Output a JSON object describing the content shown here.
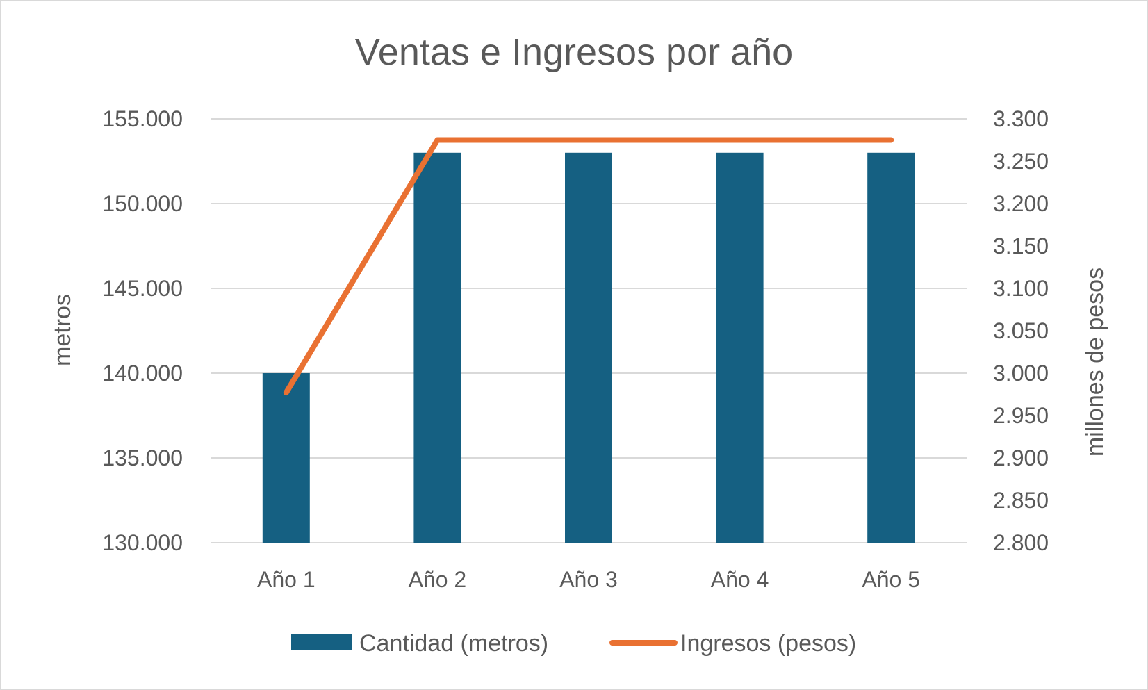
{
  "chart_data": {
    "type": "bar+line",
    "title": "Ventas e Ingresos por año",
    "categories": [
      "Año 1",
      "Año 2",
      "Año 3",
      "Año 4",
      "Año 5"
    ],
    "series": [
      {
        "name": "Cantidad (metros)",
        "type": "bar",
        "axis": "left",
        "color": "#156082",
        "values": [
          140000,
          153000,
          153000,
          153000,
          153000
        ]
      },
      {
        "name": "Ingresos (pesos)",
        "type": "line",
        "axis": "right",
        "color": "#e97132",
        "values": [
          2977,
          3275,
          3275,
          3275,
          3275
        ]
      }
    ],
    "y_left": {
      "label": "metros",
      "range": [
        130000,
        155000
      ],
      "ticks": [
        "130.000",
        "135.000",
        "140.000",
        "145.000",
        "150.000",
        "155.000"
      ]
    },
    "y_right": {
      "label": "millones de pesos",
      "range": [
        2800,
        3300
      ],
      "ticks": [
        "2.800",
        "2.850",
        "2.900",
        "2.950",
        "3.000",
        "3.050",
        "3.100",
        "3.150",
        "3.200",
        "3.250",
        "3.300"
      ]
    },
    "grid": true,
    "legend": "bottom",
    "gridline_color": "#d9d9d9"
  }
}
